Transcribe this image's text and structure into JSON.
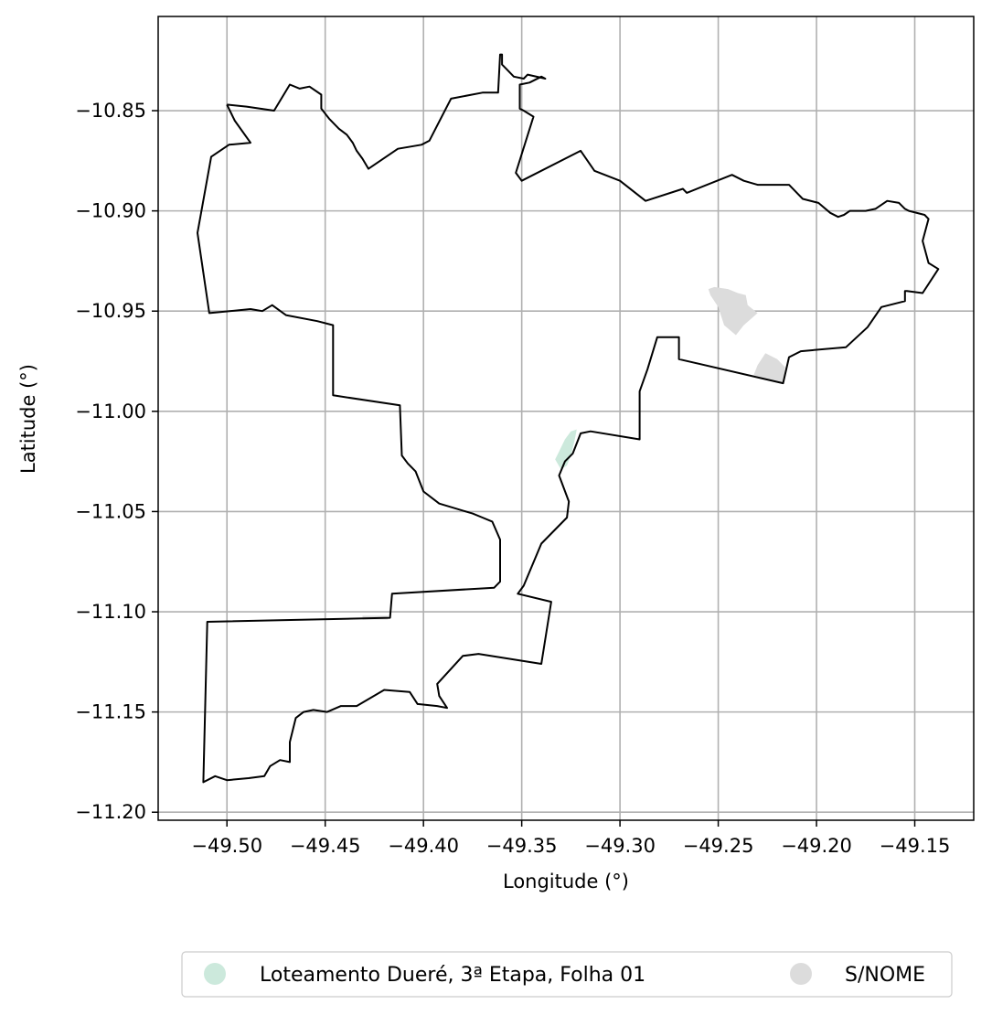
{
  "chart_data": {
    "type": "map",
    "xlabel": "Longitude (°)",
    "ylabel": "Latitude (°)",
    "xlim": [
      -49.535,
      -49.12
    ],
    "ylim": [
      -11.204,
      -10.803
    ],
    "grid": true,
    "x_ticks": [
      {
        "value": -49.5,
        "label": "−49.50"
      },
      {
        "value": -49.45,
        "label": "−49.45"
      },
      {
        "value": -49.4,
        "label": "−49.40"
      },
      {
        "value": -49.35,
        "label": "−49.35"
      },
      {
        "value": -49.3,
        "label": "−49.30"
      },
      {
        "value": -49.25,
        "label": "−49.25"
      },
      {
        "value": -49.2,
        "label": "−49.20"
      },
      {
        "value": -49.15,
        "label": "−49.15"
      }
    ],
    "y_ticks": [
      {
        "value": -10.85,
        "label": "−10.85"
      },
      {
        "value": -10.9,
        "label": "−10.90"
      },
      {
        "value": -10.95,
        "label": "−10.95"
      },
      {
        "value": -11.0,
        "label": "−11.00"
      },
      {
        "value": -11.05,
        "label": "−11.05"
      },
      {
        "value": -11.1,
        "label": "−11.10"
      },
      {
        "value": -11.15,
        "label": "−11.15"
      },
      {
        "value": -11.2,
        "label": "−11.20"
      }
    ],
    "boundary": {
      "stroke": "#000000",
      "coords": [
        [
          -49.5,
          -10.847
        ],
        [
          -49.49,
          -10.848
        ],
        [
          -49.476,
          -10.85
        ],
        [
          -49.468,
          -10.837
        ],
        [
          -49.463,
          -10.839
        ],
        [
          -49.458,
          -10.838
        ],
        [
          -49.452,
          -10.842
        ],
        [
          -49.452,
          -10.849
        ],
        [
          -49.448,
          -10.854
        ],
        [
          -49.443,
          -10.859
        ],
        [
          -49.439,
          -10.862
        ],
        [
          -49.436,
          -10.866
        ],
        [
          -49.434,
          -10.87
        ],
        [
          -49.431,
          -10.874
        ],
        [
          -49.428,
          -10.879
        ],
        [
          -49.413,
          -10.869
        ],
        [
          -49.401,
          -10.867
        ],
        [
          -49.397,
          -10.865
        ],
        [
          -49.386,
          -10.844
        ],
        [
          -49.37,
          -10.841
        ],
        [
          -49.362,
          -10.841
        ],
        [
          -49.361,
          -10.822
        ],
        [
          -49.36,
          -10.822
        ],
        [
          -49.36,
          -10.827
        ],
        [
          -49.357,
          -10.83
        ],
        [
          -49.354,
          -10.833
        ],
        [
          -49.349,
          -10.834
        ],
        [
          -49.347,
          -10.832
        ],
        [
          -49.338,
          -10.834
        ],
        [
          -49.34,
          -10.833
        ],
        [
          -49.346,
          -10.836
        ],
        [
          -49.351,
          -10.837
        ],
        [
          -49.351,
          -10.849
        ],
        [
          -49.349,
          -10.85
        ],
        [
          -49.344,
          -10.853
        ],
        [
          -49.353,
          -10.881
        ],
        [
          -49.35,
          -10.885
        ],
        [
          -49.32,
          -10.87
        ],
        [
          -49.313,
          -10.88
        ],
        [
          -49.3,
          -10.885
        ],
        [
          -49.287,
          -10.895
        ],
        [
          -49.268,
          -10.889
        ],
        [
          -49.266,
          -10.891
        ],
        [
          -49.243,
          -10.882
        ],
        [
          -49.237,
          -10.885
        ],
        [
          -49.23,
          -10.887
        ],
        [
          -49.214,
          -10.887
        ],
        [
          -49.21,
          -10.891
        ],
        [
          -49.207,
          -10.894
        ],
        [
          -49.199,
          -10.896
        ],
        [
          -49.193,
          -10.901
        ],
        [
          -49.189,
          -10.903
        ],
        [
          -49.186,
          -10.902
        ],
        [
          -49.183,
          -10.9
        ],
        [
          -49.175,
          -10.9
        ],
        [
          -49.17,
          -10.899
        ],
        [
          -49.164,
          -10.895
        ],
        [
          -49.158,
          -10.896
        ],
        [
          -49.155,
          -10.899
        ],
        [
          -49.153,
          -10.9
        ],
        [
          -49.145,
          -10.902
        ],
        [
          -49.143,
          -10.904
        ],
        [
          -49.146,
          -10.915
        ],
        [
          -49.143,
          -10.926
        ],
        [
          -49.138,
          -10.929
        ],
        [
          -49.146,
          -10.941
        ],
        [
          -49.154,
          -10.94
        ],
        [
          -49.155,
          -10.94
        ],
        [
          -49.155,
          -10.945
        ],
        [
          -49.167,
          -10.948
        ],
        [
          -49.174,
          -10.958
        ],
        [
          -49.185,
          -10.968
        ],
        [
          -49.208,
          -10.97
        ],
        [
          -49.214,
          -10.973
        ],
        [
          -49.217,
          -10.986
        ],
        [
          -49.27,
          -10.974
        ],
        [
          -49.27,
          -10.963
        ],
        [
          -49.281,
          -10.963
        ],
        [
          -49.286,
          -10.979
        ],
        [
          -49.29,
          -10.99
        ],
        [
          -49.29,
          -11.014
        ],
        [
          -49.315,
          -11.01
        ],
        [
          -49.32,
          -11.011
        ],
        [
          -49.324,
          -11.021
        ],
        [
          -49.328,
          -11.025
        ],
        [
          -49.331,
          -11.032
        ],
        [
          -49.326,
          -11.045
        ],
        [
          -49.327,
          -11.053
        ],
        [
          -49.34,
          -11.066
        ],
        [
          -49.346,
          -11.08
        ],
        [
          -49.349,
          -11.087
        ],
        [
          -49.352,
          -11.091
        ],
        [
          -49.335,
          -11.095
        ],
        [
          -49.34,
          -11.126
        ],
        [
          -49.372,
          -11.121
        ],
        [
          -49.38,
          -11.122
        ],
        [
          -49.393,
          -11.136
        ],
        [
          -49.392,
          -11.142
        ],
        [
          -49.388,
          -11.148
        ],
        [
          -49.393,
          -11.147
        ],
        [
          -49.403,
          -11.146
        ],
        [
          -49.407,
          -11.14
        ],
        [
          -49.42,
          -11.139
        ],
        [
          -49.434,
          -11.147
        ],
        [
          -49.442,
          -11.147
        ],
        [
          -49.449,
          -11.15
        ],
        [
          -49.456,
          -11.149
        ],
        [
          -49.461,
          -11.15
        ],
        [
          -49.465,
          -11.153
        ],
        [
          -49.468,
          -11.165
        ],
        [
          -49.468,
          -11.175
        ],
        [
          -49.473,
          -11.174
        ],
        [
          -49.478,
          -11.177
        ],
        [
          -49.481,
          -11.182
        ],
        [
          -49.489,
          -11.183
        ],
        [
          -49.5,
          -11.184
        ],
        [
          -49.506,
          -11.182
        ],
        [
          -49.512,
          -11.185
        ],
        [
          -49.51,
          -11.105
        ],
        [
          -49.417,
          -11.103
        ],
        [
          -49.416,
          -11.091
        ],
        [
          -49.364,
          -11.088
        ],
        [
          -49.361,
          -11.085
        ],
        [
          -49.361,
          -11.064
        ],
        [
          -49.365,
          -11.055
        ],
        [
          -49.37,
          -11.053
        ],
        [
          -49.375,
          -11.051
        ],
        [
          -49.392,
          -11.046
        ],
        [
          -49.4,
          -11.04
        ],
        [
          -49.404,
          -11.03
        ],
        [
          -49.408,
          -11.026
        ],
        [
          -49.411,
          -11.022
        ],
        [
          -49.412,
          -10.997
        ],
        [
          -49.446,
          -10.992
        ],
        [
          -49.446,
          -10.957
        ],
        [
          -49.454,
          -10.955
        ],
        [
          -49.47,
          -10.952
        ],
        [
          -49.477,
          -10.947
        ],
        [
          -49.482,
          -10.95
        ],
        [
          -49.488,
          -10.949
        ],
        [
          -49.509,
          -10.951
        ],
        [
          -49.515,
          -10.911
        ],
        [
          -49.508,
          -10.873
        ],
        [
          -49.499,
          -10.867
        ],
        [
          -49.488,
          -10.866
        ],
        [
          -49.496,
          -10.855
        ],
        [
          -49.5,
          -10.847
        ]
      ]
    },
    "areas": [
      {
        "category": "Loteamento Dueré, 3ª Etapa, Folha 01",
        "color": "#cce9dc",
        "coords": [
          [
            -49.322,
            -11.009
          ],
          [
            -49.325,
            -11.01
          ],
          [
            -49.328,
            -11.014
          ],
          [
            -49.331,
            -11.02
          ],
          [
            -49.333,
            -11.024
          ],
          [
            -49.33,
            -11.029
          ],
          [
            -49.327,
            -11.027
          ],
          [
            -49.325,
            -11.022
          ],
          [
            -49.323,
            -11.014
          ]
        ]
      },
      {
        "category": "S/NOME",
        "color": "#dcdcdc",
        "coords": [
          [
            -49.252,
            -10.938
          ],
          [
            -49.245,
            -10.939
          ],
          [
            -49.24,
            -10.941
          ],
          [
            -49.236,
            -10.942
          ],
          [
            -49.235,
            -10.947
          ],
          [
            -49.23,
            -10.951
          ],
          [
            -49.237,
            -10.957
          ],
          [
            -49.241,
            -10.962
          ],
          [
            -49.247,
            -10.957
          ],
          [
            -49.25,
            -10.948
          ],
          [
            -49.254,
            -10.942
          ],
          [
            -49.255,
            -10.939
          ]
        ]
      },
      {
        "category": "S/NOME",
        "color": "#dcdcdc",
        "coords": [
          [
            -49.226,
            -10.971
          ],
          [
            -49.22,
            -10.974
          ],
          [
            -49.216,
            -10.978
          ],
          [
            -49.217,
            -10.986
          ],
          [
            -49.232,
            -10.982
          ],
          [
            -49.23,
            -10.977
          ]
        ]
      },
      {
        "category": "S/NOME",
        "color": "#dcdcdc",
        "coords": [
          [
            -49.431,
            -11.102
          ],
          [
            -49.418,
            -11.102
          ],
          [
            -49.418,
            -11.104
          ],
          [
            -49.431,
            -11.104
          ]
        ]
      }
    ],
    "legend": {
      "position": "bottom",
      "entries": [
        {
          "label": "Loteamento Dueré, 3ª Etapa, Folha 01",
          "color": "#cce9dc"
        },
        {
          "label": "S/NOME",
          "color": "#dcdcdc"
        }
      ]
    }
  }
}
